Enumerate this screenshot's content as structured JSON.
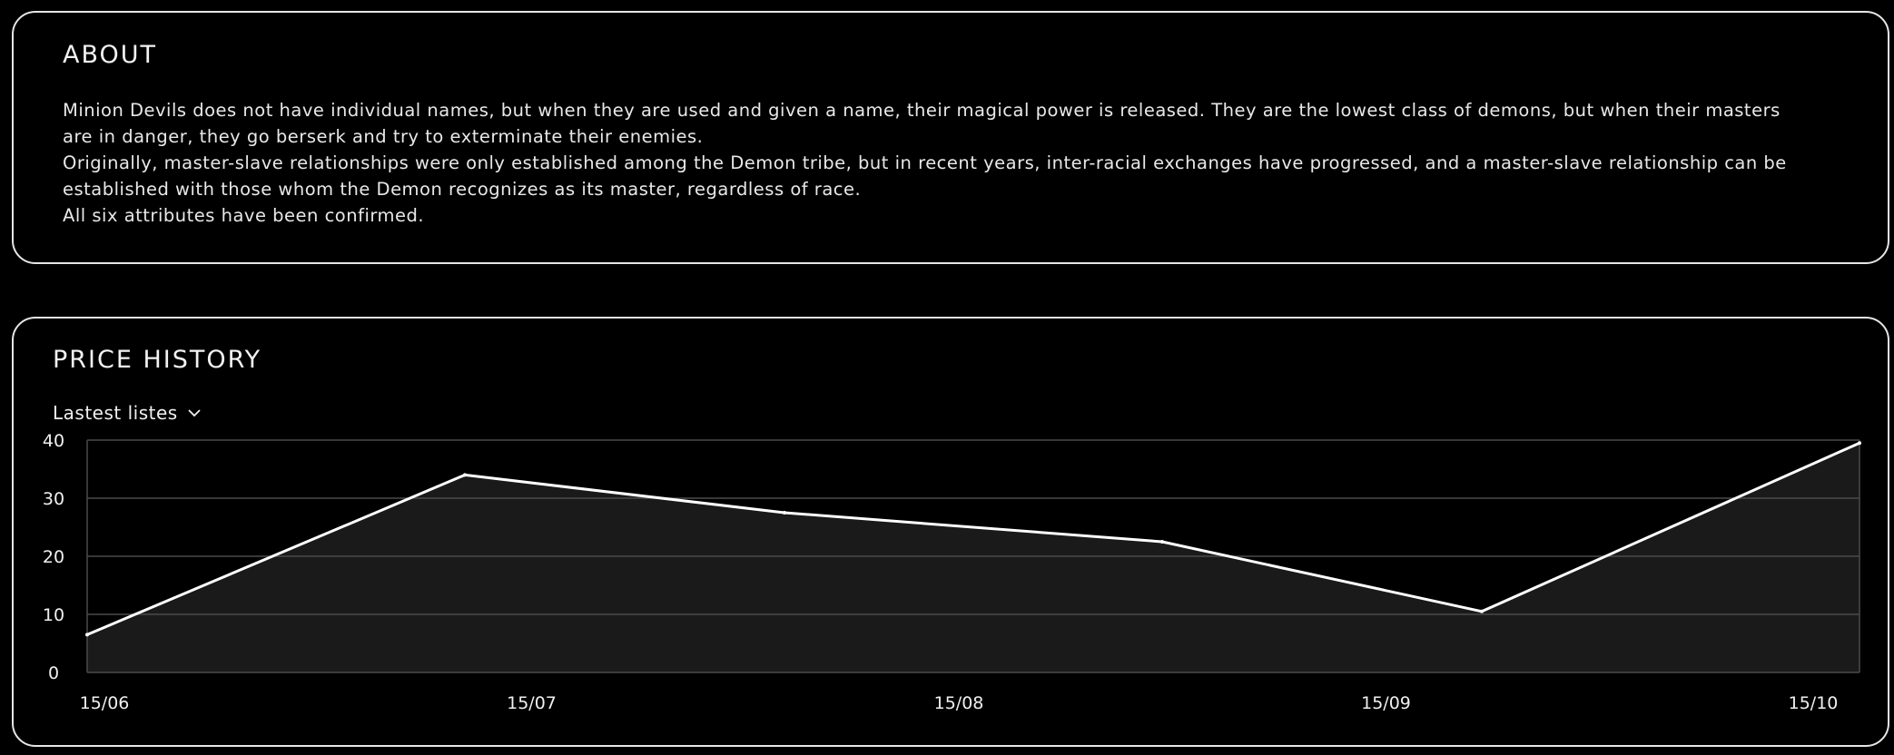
{
  "about": {
    "title": "ABOUT",
    "paragraphs": [
      "Minion Devils does not have individual names, but when they are used and given a name, their magical power is released. They are the lowest class of demons, but when their masters are in danger, they go berserk and try to exterminate their enemies.",
      "Originally, master-slave relationships were only established among the Demon tribe, but in recent years, inter-racial exchanges have progressed, and a master-slave relationship can be established with those whom the Demon recognizes as its master, regardless of race.",
      "All six attributes have been confirmed."
    ]
  },
  "price_history": {
    "title": "PRICE HISTORY",
    "dropdown_label": "Lastest listes",
    "dropdown_icon": "chevron-down-icon"
  },
  "colors": {
    "background": "#000000",
    "border": "#e6e6e6",
    "line": "#ffffff",
    "area_fill": "#1a1a1a",
    "grid": "#4a4a4a"
  },
  "chart_data": {
    "type": "area",
    "x": [
      "15/06",
      "15/07",
      "15/08",
      "15/09",
      "15/10"
    ],
    "x_ticks": [
      "15/06",
      "15/07",
      "15/08",
      "15/09",
      "15/10"
    ],
    "points": [
      {
        "x": "2023-06-15",
        "y": 6.5
      },
      {
        "x": "2023-07-11",
        "y": 34
      },
      {
        "x": "2023-08-02",
        "y": 27.5
      },
      {
        "x": "2023-08-28",
        "y": 22.5
      },
      {
        "x": "2023-09-19",
        "y": 10.5
      },
      {
        "x": "2023-10-15",
        "y": 39.5
      }
    ],
    "y_ticks": [
      0,
      10,
      20,
      30,
      40
    ],
    "ylim": [
      0,
      40
    ],
    "grid": true,
    "legend": "none"
  }
}
